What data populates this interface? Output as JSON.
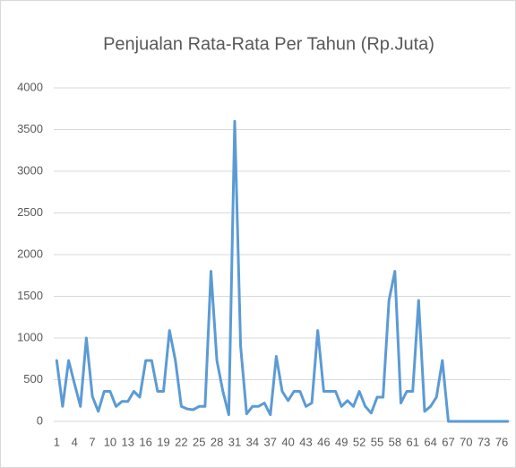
{
  "chart_data": {
    "type": "line",
    "title": "Penjualan Rata-Rata Per Tahun (Rp.Juta)",
    "categories": [
      "1",
      null,
      null,
      "4",
      null,
      null,
      "7",
      null,
      null,
      "10",
      null,
      null,
      "13",
      null,
      null,
      "16",
      null,
      null,
      "19",
      null,
      null,
      "22",
      null,
      null,
      "25",
      null,
      null,
      "28",
      null,
      null,
      "31",
      null,
      null,
      "34",
      null,
      null,
      "37",
      null,
      null,
      "40",
      null,
      null,
      "43",
      null,
      null,
      "46",
      null,
      null,
      "49",
      null,
      null,
      "52",
      null,
      null,
      "55",
      null,
      null,
      "58",
      null,
      null,
      "61",
      null,
      null,
      "64",
      null,
      null,
      "67",
      null,
      null,
      "70",
      null,
      null,
      "73",
      null,
      null,
      "76",
      null
    ],
    "series": [
      {
        "name": "Penjualan",
        "color": "#5b9bd5",
        "values": [
          730,
          180,
          730,
          450,
          180,
          1000,
          300,
          120,
          360,
          360,
          180,
          240,
          240,
          360,
          290,
          730,
          730,
          360,
          360,
          1090,
          730,
          180,
          150,
          140,
          180,
          180,
          1800,
          730,
          360,
          80,
          3600,
          900,
          90,
          180,
          180,
          220,
          80,
          780,
          360,
          250,
          360,
          360,
          180,
          220,
          1090,
          360,
          360,
          360,
          180,
          250,
          180,
          360,
          180,
          100,
          290,
          290,
          1450,
          1800,
          220,
          360,
          360,
          1450,
          120,
          180,
          290,
          730,
          0,
          0,
          0,
          0,
          0,
          0,
          0,
          0,
          0,
          0,
          0
        ]
      }
    ],
    "ylim": [
      0,
      4000
    ],
    "yticks": [
      0,
      500,
      1000,
      1500,
      2000,
      2500,
      3000,
      3500,
      4000
    ],
    "grid": true
  }
}
